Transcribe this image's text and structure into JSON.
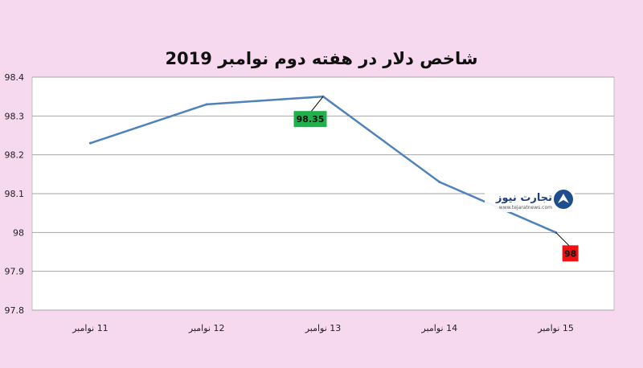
{
  "chart_data": {
    "type": "line",
    "title": "شاخص دلار در هفته دوم نوامبر 2019",
    "xlabel": "",
    "ylabel": "",
    "categories": [
      "11 نوامبر",
      "12 نوامبر",
      "13 نوامبر",
      "14 نوامبر",
      "15 نوامبر"
    ],
    "series": [
      {
        "values": [
          98.23,
          98.33,
          98.35,
          98.13,
          98.0
        ],
        "color": "#4f81bd"
      }
    ],
    "ylim": [
      97.8,
      98.4
    ],
    "yticks": [
      "98.4",
      "98.3",
      "98.2",
      "98.1",
      "98",
      "97.9",
      "97.8"
    ],
    "grid": true,
    "legend": "none",
    "data_labels": [
      {
        "index": 2,
        "text": "98.35",
        "color": "#21b14c"
      },
      {
        "index": 4,
        "text": "98",
        "color": "#ee1111"
      }
    ]
  },
  "watermark": {
    "brand": "تجارت نیوز",
    "url": "www.tejaratnews.com",
    "icon": "tejaratnews-logo-icon"
  }
}
